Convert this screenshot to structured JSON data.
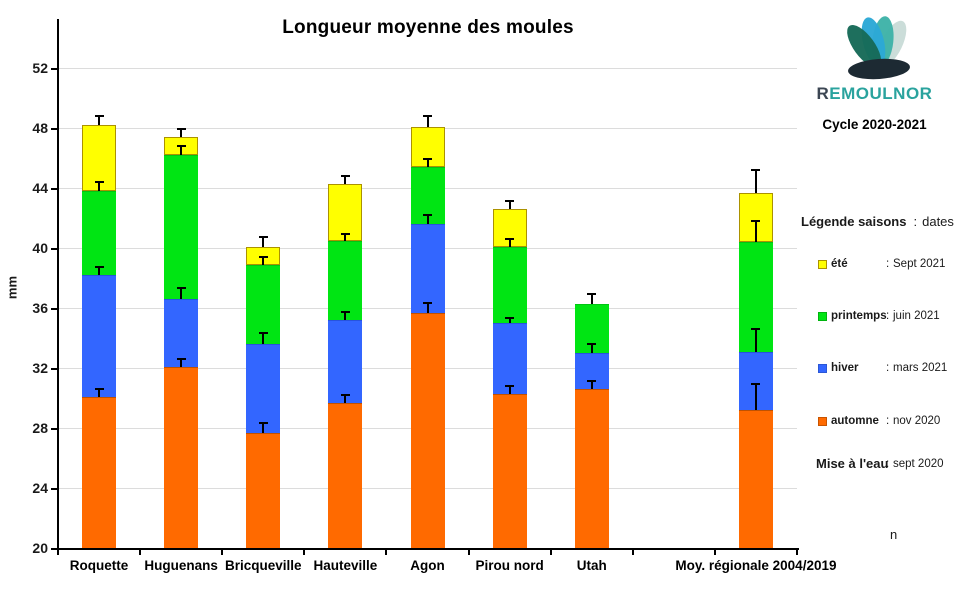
{
  "chart_data": {
    "type": "bar",
    "stacked_overlay": true,
    "title": "Longueur moyenne des moules",
    "ylabel": "mm",
    "ylim": [
      20,
      52
    ],
    "ytick_step": 4,
    "grid": "horizontal",
    "categories": [
      "Roquette",
      "Huguenans",
      "Bricqueville",
      "Hauteville",
      "Agon",
      "Pirou nord",
      "Utah",
      "",
      "Moy. régionale 2004/2019"
    ],
    "series": [
      {
        "name": "automne",
        "color": "#ff6a00",
        "border_top": "rgba(140,60,0,0.55)",
        "values": [
          30.1,
          32.1,
          27.7,
          29.7,
          35.7,
          30.3,
          30.6,
          null,
          29.2
        ],
        "errors_top": [
          30.7,
          32.7,
          28.4,
          30.3,
          36.4,
          30.9,
          31.2,
          null,
          31.0
        ]
      },
      {
        "name": "hiver",
        "color": "#3366ff",
        "border_top": "rgba(25,60,180,0.45)",
        "values": [
          38.2,
          36.6,
          33.6,
          35.2,
          41.6,
          35.0,
          33.0,
          null,
          33.1
        ],
        "errors_top": [
          38.8,
          37.4,
          34.4,
          35.8,
          42.3,
          35.4,
          33.7,
          null,
          34.7
        ]
      },
      {
        "name": "printemps",
        "color": "#00e513",
        "border_top": "rgba(0,140,20,0.35)",
        "values": [
          43.8,
          46.2,
          38.9,
          40.5,
          45.4,
          40.1,
          36.3,
          null,
          40.4
        ],
        "errors_top": [
          44.5,
          46.9,
          39.5,
          41.0,
          46.0,
          40.7,
          37.0,
          null,
          41.9
        ]
      },
      {
        "name": "été",
        "color": "#ffff00",
        "border": "#ab9200",
        "values": [
          48.2,
          47.4,
          40.1,
          44.3,
          48.1,
          42.6,
          null,
          null,
          43.7
        ],
        "errors_top": [
          48.9,
          48.0,
          40.8,
          44.9,
          48.9,
          43.2,
          null,
          null,
          45.3
        ]
      }
    ]
  },
  "header": {
    "title": "Longueur moyenne des moules",
    "ylabel": "mm"
  },
  "logo": {
    "text_first": "R",
    "text_rest": "EMOULNOR",
    "text_first_color": "#3c4653",
    "text_rest_color": "#2aa39e",
    "petal_colors": [
      "#c9dcd8",
      "#3fb3a8",
      "#2ca8d6",
      "#176a58"
    ],
    "base_color": "#1d2a33",
    "subtitle": "Cycle 2020-2021"
  },
  "legend": {
    "header": {
      "label": "Légende saisons",
      "sep": ":",
      "value": "dates"
    },
    "items": [
      {
        "key": "été",
        "color": "#ffff00",
        "border": "#ab9200",
        "colon": ":",
        "date": "Sept 2021"
      },
      {
        "key": "printemps",
        "color": "#00e513",
        "border": "#00b40f",
        "colon": ":",
        "date": "juin 2021"
      },
      {
        "key": "hiver",
        "color": "#3366ff",
        "border": "#2b57d6",
        "colon": ":",
        "date": "mars 2021"
      },
      {
        "key": "automne",
        "color": "#ff6a00",
        "border": "#c85400",
        "colon": ":",
        "date": "nov 2020"
      }
    ],
    "mise": {
      "label": "Mise à l'eau",
      "colon": ":",
      "date": "sept 2020"
    },
    "note": "n"
  }
}
